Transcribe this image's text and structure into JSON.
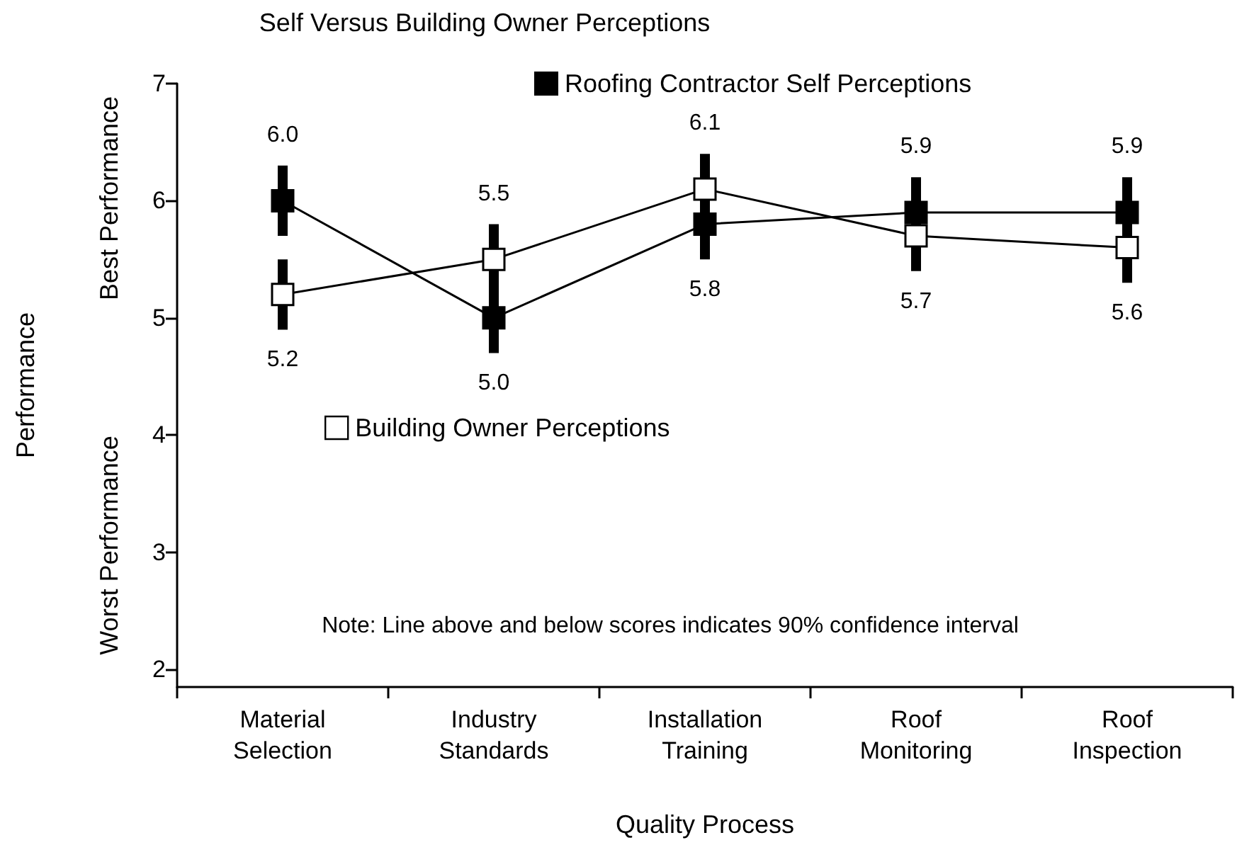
{
  "chart_data": {
    "type": "line",
    "title": "Self Versus Building Owner Perceptions",
    "xlabel": "Quality Process",
    "ylabel": "Performance",
    "categories": [
      "Material Selection",
      "Industry Standards",
      "Installation Training",
      "Roof Monitoring",
      "Roof Inspection"
    ],
    "series": [
      {
        "name": "Roofing Contractor Self Perceptions",
        "color": "#000000",
        "values": [
          6.0,
          5.0,
          5.8,
          5.9,
          5.9
        ],
        "value_labels": [
          "6.0",
          "5.0",
          "5.8",
          "5.9",
          "5.9"
        ],
        "errors": [
          0.3,
          0.3,
          0.3,
          0.3,
          0.3
        ]
      },
      {
        "name": "Building Owner Perceptions",
        "color": "#ffffff",
        "values": [
          5.2,
          5.5,
          6.1,
          5.7,
          5.6
        ],
        "value_labels": [
          "5.2",
          "5.5",
          "6.1",
          "5.7",
          "5.6"
        ],
        "errors": [
          0.3,
          0.3,
          0.3,
          0.3,
          0.3
        ]
      }
    ],
    "ylim": [
      1.85,
      7
    ],
    "yticks": [
      2,
      3,
      4,
      5,
      6,
      7
    ],
    "annotations": [
      "Best Performance",
      "Worst Performance",
      "Note: Line above and below scores indicates 90% confidence interval"
    ],
    "marker": "square",
    "line_style": "solid",
    "grid": false,
    "legend": "top"
  }
}
